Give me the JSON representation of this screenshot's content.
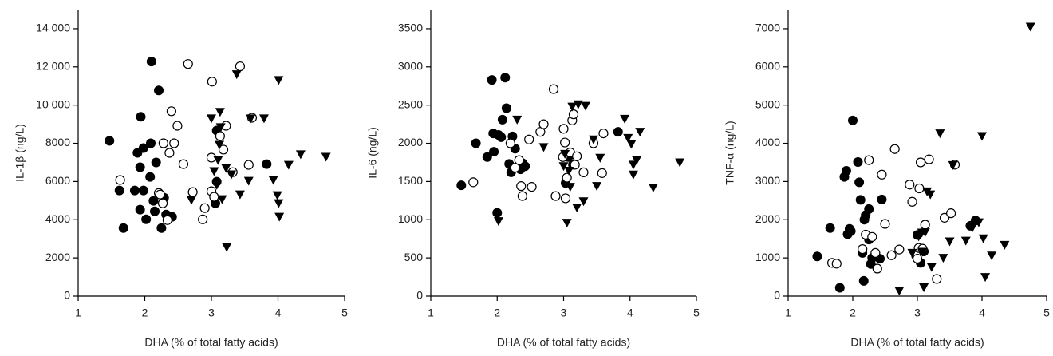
{
  "chart_data": [
    {
      "type": "scatter",
      "x_label": "DHA (% of total fatty acids)",
      "y_label": "IL-1β (ng/L)",
      "xlim": [
        1,
        5
      ],
      "ylim": [
        0,
        15000
      ],
      "xticks": [
        1,
        2,
        3,
        4,
        5
      ],
      "yticks": [
        0,
        2000,
        4000,
        6000,
        8000,
        {
          "value": 10000,
          "label": "10 000"
        },
        {
          "value": 12000,
          "label": "12 000"
        },
        {
          "value": 14000,
          "label": "14 000"
        }
      ],
      "series": [
        {
          "color": "#000000",
          "marker": "circle",
          "x": [
            1.47,
            1.62,
            1.68,
            1.85,
            1.89,
            1.93,
            1.94,
            1.93,
            1.98,
            1.98,
            2.02,
            2.08,
            2.09,
            2.1,
            2.13,
            2.17,
            2.15,
            2.21,
            2.25,
            2.29,
            2.32,
            2.41,
            3.08,
            3.06,
            3.08,
            3.83
          ],
          "values": [
            8130,
            5530,
            3560,
            5530,
            7500,
            6750,
            9390,
            4530,
            5530,
            7750,
            4020,
            6240,
            8000,
            12280,
            4990,
            7000,
            4440,
            10770,
            3560,
            5150,
            4270,
            4150,
            8670,
            4860,
            5990,
            6910
          ]
        },
        {
          "color": "#000000",
          "marker": "circle-open",
          "x": [
            1.63,
            2.21,
            2.28,
            2.4,
            2.44,
            2.49,
            2.37,
            2.27,
            2.23,
            2.34,
            2.58,
            2.65,
            2.72,
            2.87,
            2.9,
            3.0,
            3.01,
            3.0,
            3.04,
            3.13,
            3.22,
            3.18,
            3.32,
            3.43,
            3.56,
            3.61
          ],
          "values": [
            6080,
            5400,
            8000,
            9680,
            8000,
            8920,
            7500,
            4860,
            5320,
            3980,
            6910,
            12150,
            5450,
            4020,
            4610,
            7250,
            11230,
            5490,
            5200,
            8380,
            8920,
            7670,
            6490,
            12030,
            6870,
            9340
          ]
        },
        {
          "color": "#000000",
          "marker": "triangle-down",
          "x": [
            2.7,
            3.0,
            3.13,
            3.04,
            3.1,
            3.12,
            3.14,
            3.08,
            3.16,
            3.22,
            3.23,
            3.3,
            3.38,
            3.43,
            3.56,
            3.59,
            3.79,
            3.93,
            3.99,
            4.01,
            4.01,
            4.02,
            4.16,
            4.34,
            4.72
          ],
          "values": [
            5030,
            9300,
            9640,
            6540,
            7120,
            7920,
            8840,
            5820,
            5070,
            6700,
            2560,
            6370,
            11610,
            5320,
            6030,
            9300,
            9300,
            6080,
            5280,
            11310,
            4860,
            4150,
            6870,
            7420,
            7290
          ]
        }
      ]
    },
    {
      "type": "scatter",
      "x_label": "DHA (% of total fatty acids)",
      "y_label": "IL-6 (ng/L)",
      "xlim": [
        1,
        5
      ],
      "ylim": [
        0,
        3750
      ],
      "xticks": [
        1,
        2,
        3,
        4,
        5
      ],
      "yticks": [
        0,
        500,
        1000,
        1500,
        2000,
        2500,
        3000,
        3500
      ],
      "series": [
        {
          "color": "#000000",
          "marker": "circle",
          "x": [
            1.46,
            1.68,
            1.85,
            1.92,
            1.94,
            1.95,
            2.0,
            2.02,
            2.06,
            2.08,
            2.12,
            2.14,
            2.18,
            2.21,
            2.23,
            2.27,
            2.35,
            2.38,
            2.42,
            3.03,
            3.07,
            3.14,
            3.82
          ],
          "values": [
            1450,
            2000,
            1820,
            2830,
            2130,
            1890,
            1090,
            2110,
            2080,
            2310,
            2860,
            2460,
            1730,
            1620,
            2090,
            1930,
            1660,
            1740,
            1700,
            1480,
            1820,
            1720,
            2150
          ]
        },
        {
          "color": "#000000",
          "marker": "circle-open",
          "x": [
            1.64,
            2.2,
            2.27,
            2.33,
            2.38,
            2.36,
            2.48,
            2.52,
            2.65,
            2.7,
            2.85,
            2.88,
            2.99,
            3.0,
            3.02,
            3.03,
            3.05,
            3.1,
            3.13,
            3.15,
            3.17,
            3.2,
            3.3,
            3.45,
            3.58,
            3.6
          ],
          "values": [
            1490,
            2000,
            1680,
            1780,
            1310,
            1440,
            2050,
            1430,
            2150,
            2250,
            2710,
            1310,
            1820,
            2190,
            2010,
            1280,
            1550,
            1880,
            2300,
            2380,
            1720,
            1830,
            1620,
            2000,
            1610,
            2130
          ]
        },
        {
          "color": "#000000",
          "marker": "triangle-down",
          "x": [
            2.02,
            2.3,
            2.7,
            3.0,
            3.02,
            3.05,
            3.08,
            3.1,
            3.13,
            3.2,
            3.22,
            3.3,
            3.33,
            3.45,
            3.5,
            3.55,
            3.92,
            3.97,
            4.02,
            4.05,
            4.05,
            4.1,
            4.15,
            4.35,
            4.75
          ],
          "values": [
            980,
            2310,
            1950,
            1700,
            1860,
            960,
            1640,
            1430,
            2480,
            1160,
            2510,
            1240,
            2490,
            2050,
            1440,
            1810,
            2320,
            2070,
            1990,
            1590,
            1720,
            1780,
            2150,
            1420,
            1750
          ]
        }
      ]
    },
    {
      "type": "scatter",
      "x_label": "DHA (% of total fatty acids)",
      "y_label": "TNF-α (ng/L)",
      "xlim": [
        1,
        5
      ],
      "ylim": [
        0,
        7500
      ],
      "xticks": [
        1,
        2,
        3,
        4,
        5
      ],
      "yticks": [
        0,
        1000,
        2000,
        3000,
        4000,
        5000,
        6000,
        7000
      ],
      "series": [
        {
          "color": "#000000",
          "marker": "circle",
          "x": [
            1.45,
            1.65,
            1.8,
            1.87,
            1.9,
            1.92,
            1.95,
            2.0,
            1.97,
            2.08,
            2.1,
            2.12,
            2.15,
            2.17,
            2.18,
            2.2,
            2.25,
            2.25,
            2.28,
            2.3,
            2.45,
            2.42,
            3.0,
            3.05,
            3.1,
            3.82,
            3.9
          ],
          "values": [
            1040,
            1780,
            220,
            3120,
            3280,
            1620,
            1760,
            4600,
            1700,
            3510,
            2980,
            2520,
            1130,
            400,
            2000,
            2120,
            2280,
            1480,
            840,
            1000,
            2530,
            980,
            1600,
            870,
            1170,
            1840,
            1980
          ]
        },
        {
          "color": "#000000",
          "marker": "circle-open",
          "x": [
            1.68,
            1.75,
            2.15,
            2.2,
            2.25,
            2.3,
            2.35,
            2.38,
            2.45,
            2.5,
            2.6,
            2.65,
            2.72,
            2.88,
            2.92,
            2.98,
            3.0,
            3.02,
            3.03,
            3.05,
            3.08,
            3.12,
            3.18,
            3.3,
            3.42,
            3.52,
            3.58
          ],
          "values": [
            870,
            850,
            1230,
            1610,
            3560,
            1550,
            1130,
            720,
            3180,
            1890,
            1070,
            3850,
            1220,
            2920,
            2470,
            1060,
            980,
            1260,
            2820,
            3500,
            1240,
            1870,
            3580,
            450,
            2050,
            2170,
            3440
          ]
        },
        {
          "color": "#000000",
          "marker": "triangle-down",
          "x": [
            2.72,
            3.02,
            3.07,
            3.08,
            3.1,
            3.12,
            3.15,
            3.2,
            3.22,
            3.35,
            3.4,
            3.5,
            3.55,
            3.75,
            3.85,
            3.95,
            4.0,
            4.02,
            4.05,
            4.15,
            4.35,
            4.75,
            2.92
          ],
          "values": [
            140,
            1560,
            1660,
            1160,
            230,
            1670,
            2740,
            2660,
            760,
            4260,
            1000,
            1430,
            3430,
            1450,
            1790,
            1930,
            4190,
            1510,
            500,
            1060,
            1340,
            7050,
            1130
          ]
        }
      ]
    }
  ]
}
